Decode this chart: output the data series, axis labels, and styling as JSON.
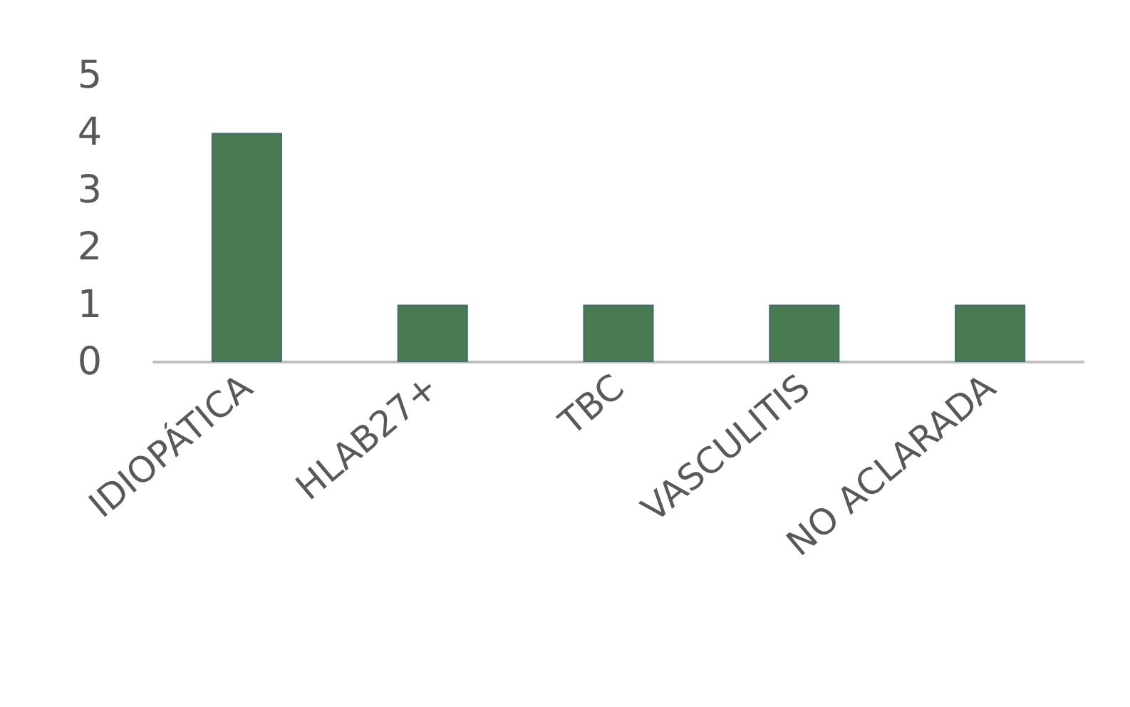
{
  "chart_data": {
    "type": "bar",
    "categories": [
      "IDIOPÁTICA",
      "HLAB27+",
      "TBC",
      "VASCULITIS",
      "NO ACLARADA"
    ],
    "values": [
      4,
      1,
      1,
      1,
      1
    ],
    "color": "#4a7a52",
    "ylim": [
      0,
      5
    ],
    "yticks": [
      0,
      1,
      2,
      3,
      4,
      5
    ],
    "grid": false
  }
}
